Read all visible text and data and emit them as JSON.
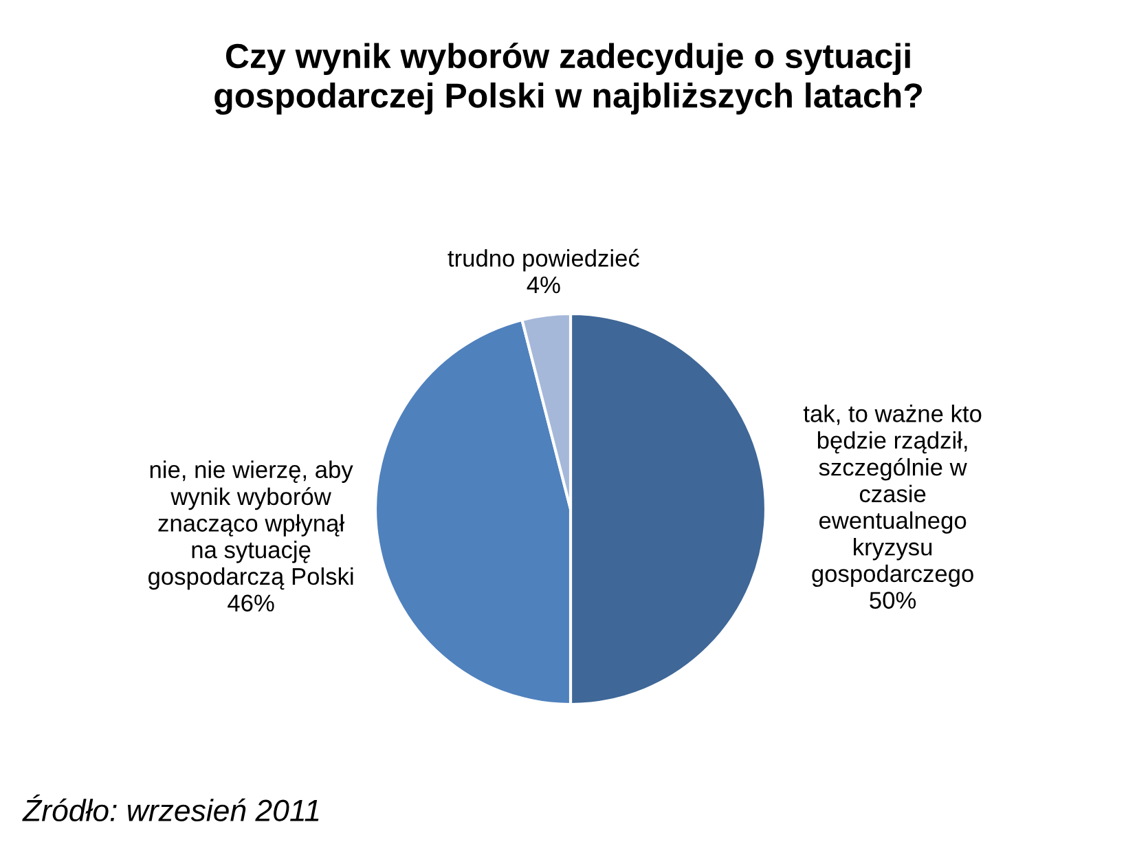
{
  "chart_data": {
    "type": "pie",
    "title": "Czy wynik wyborów zadecyduje o sytuacji\ngospodarczej Polski w najbliższych latach?",
    "categories": [
      "tak, to ważne kto\nbędzie rządził,\nszczególnie w\nczasie\newentualnego\nkryzysu\ngospodarczego",
      "nie, nie wierzę, aby\nwynik wyborów\nznacząco wpłynął\nna sytuację\ngospodarczą Polski",
      "trudno powiedzieć"
    ],
    "values": [
      50,
      46,
      4
    ],
    "value_labels": [
      "50%",
      "46%",
      "4%"
    ],
    "colors": [
      "#3f6797",
      "#4f81bd",
      "#a5b8d9"
    ],
    "annotations": [
      "Źródło: wrzesień 2011"
    ]
  }
}
